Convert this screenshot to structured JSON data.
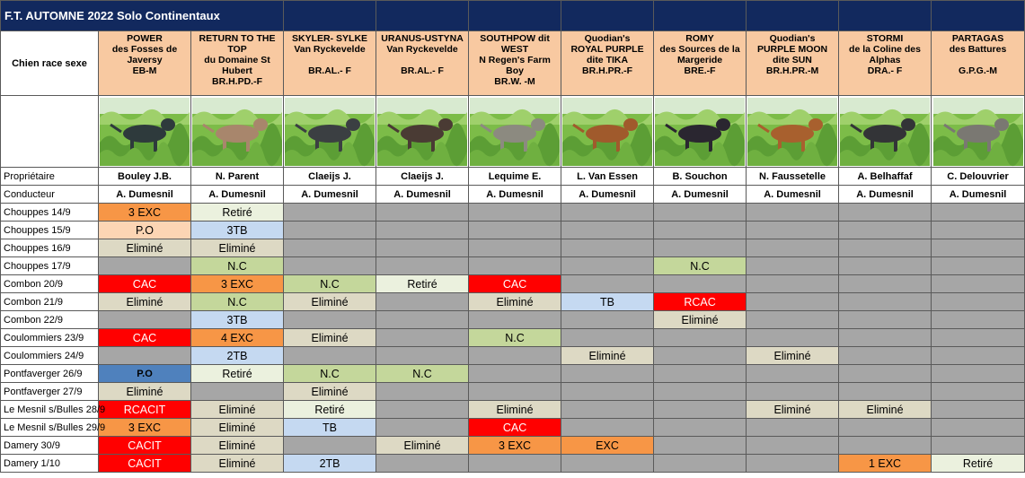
{
  "title": "F.T. AUTOMNE 2022 Solo Continentaux",
  "corner_label": "Chien race sexe",
  "owner_label": "Propriétaire",
  "handler_label": "Conducteur",
  "colors": {
    "navy": "#12295e",
    "header": "#f8c9a1",
    "empty": "#a6a6a6",
    "CAC": "#ff0000",
    "RCAC": "#ff0000",
    "RCACIT": "#ff0000",
    "CACIT": "#ff0000",
    "EXC": "#f79646",
    "TB": "#c5d9f1",
    "P.O": "#fcd5b4",
    "P.O_blue": "#4f81bd",
    "N.C": "#c4d79b",
    "Eliminé": "#ddd9c4",
    "Retiré": "#ebf1de"
  },
  "dogs": [
    {
      "lines": [
        "POWER",
        "des Fosses de",
        "Javersy",
        "EB-M"
      ],
      "owner": "Bouley J.B.",
      "handler": "A. Dumesnil",
      "photo": "mottled-black-white-pointer-in-field"
    },
    {
      "lines": [
        "RETURN TO THE",
        "TOP",
        "du Domaine St",
        "Hubert",
        "BR.H.PD.-F"
      ],
      "owner": "N. Parent",
      "handler": "A. Dumesnil",
      "photo": "wirehaired-tan-griffon-in-field"
    },
    {
      "lines": [
        "SKYLER- SYLKE",
        "Van Ryckevelde",
        "",
        "BR.AL.- F"
      ],
      "owner": "Claeijs J.",
      "handler": "A. Dumesnil",
      "photo": "black-white-pointer-in-field"
    },
    {
      "lines": [
        "URANUS-USTYNA",
        "Van Ryckevelde",
        "",
        "BR.AL.- F"
      ],
      "owner": "Claeijs J.",
      "handler": "A. Dumesnil",
      "photo": "brown-pointer-in-grass"
    },
    {
      "lines": [
        "SOUTHPOW dit",
        "WEST",
        "N Regen's Farm",
        "Boy",
        "BR.W. -M"
      ],
      "owner": "Lequime E.",
      "handler": "A. Dumesnil",
      "photo": "grey-weimaraner-in-field"
    },
    {
      "lines": [
        "Quodian's",
        "ROYAL PURPLE",
        "dite TIKA",
        "BR.H.PR.-F"
      ],
      "owner": "L. Van Essen",
      "handler": "A. Dumesnil",
      "photo": "red-vizsla-standing"
    },
    {
      "lines": [
        "ROMY",
        "des Sources de la",
        "Margeride",
        "BRE.-F"
      ],
      "owner": "B. Souchon",
      "handler": "A. Dumesnil",
      "photo": "black-white-tan-brittany"
    },
    {
      "lines": [
        "Quodian's",
        "PURPLE MOON",
        "dite SUN",
        "BR.H.PR.-M"
      ],
      "owner": "N. Faussetelle",
      "handler": "A. Dumesnil",
      "photo": "red-vizsla-in-field"
    },
    {
      "lines": [
        "STORMI",
        "de la Coline des",
        "Alphas",
        "DRA.- F"
      ],
      "owner": "A. Belhaffaf",
      "handler": "A. Dumesnil",
      "photo": "dark-drahthaar-in-field"
    },
    {
      "lines": [
        "PARTAGAS",
        "des Battures",
        "",
        "G.P.G.-M"
      ],
      "owner": "C. Delouvrier",
      "handler": "A. Dumesnil",
      "photo": "grey-griffon-in-field"
    }
  ],
  "trials": [
    {
      "label": "Chouppes 14/9",
      "results": [
        "3 EXC",
        "Retiré",
        "",
        "",
        "",
        "",
        "",
        "",
        "",
        ""
      ]
    },
    {
      "label": "Chouppes 15/9",
      "results": [
        "P.O",
        "3TB",
        "",
        "",
        "",
        "",
        "",
        "",
        "",
        ""
      ]
    },
    {
      "label": "Chouppes 16/9",
      "results": [
        "Eliminé",
        "Eliminé",
        "",
        "",
        "",
        "",
        "",
        "",
        "",
        ""
      ]
    },
    {
      "label": "Chouppes 17/9",
      "results": [
        "",
        "N.C",
        "",
        "",
        "",
        "",
        "N.C",
        "",
        "",
        ""
      ]
    },
    {
      "label": "Combon 20/9",
      "results": [
        "CAC",
        "3 EXC",
        "N.C",
        "Retiré",
        "CAC",
        "",
        "",
        "",
        "",
        ""
      ]
    },
    {
      "label": "Combon 21/9",
      "results": [
        "Eliminé",
        "N.C",
        "Eliminé",
        "",
        "Eliminé",
        "TB",
        "RCAC",
        "",
        "",
        ""
      ]
    },
    {
      "label": "Combon 22/9",
      "results": [
        "",
        "3TB",
        "",
        "",
        "",
        "",
        "Eliminé",
        "",
        "",
        ""
      ]
    },
    {
      "label": "Coulommiers 23/9",
      "results": [
        "CAC",
        "4 EXC",
        "Eliminé",
        "",
        "N.C",
        "",
        "",
        "",
        "",
        ""
      ]
    },
    {
      "label": "Coulommiers 24/9",
      "results": [
        "",
        "2TB",
        "",
        "",
        "",
        "Eliminé",
        "",
        "Eliminé",
        "",
        ""
      ]
    },
    {
      "label": "Pontfaverger 26/9",
      "results": [
        "P.O",
        "Retiré",
        "N.C",
        "N.C",
        "",
        "",
        "",
        "",
        "",
        ""
      ]
    },
    {
      "label": "Pontfaverger 27/9",
      "results": [
        "Eliminé",
        "",
        "Eliminé",
        "",
        "",
        "",
        "",
        "",
        "",
        ""
      ]
    },
    {
      "label": "Le Mesnil s/Bulles 28/9",
      "results": [
        "RCACIT",
        "Eliminé",
        "Retiré",
        "",
        "Eliminé",
        "",
        "",
        "Eliminé",
        "Eliminé",
        ""
      ]
    },
    {
      "label": "Le Mesnil s/Bulles 29/9",
      "results": [
        "3 EXC",
        "Eliminé",
        "TB",
        "",
        "CAC",
        "",
        "",
        "",
        "",
        ""
      ]
    },
    {
      "label": "Damery 30/9",
      "results": [
        "CACIT",
        "Eliminé",
        "",
        "Eliminé",
        "3 EXC",
        "EXC",
        "",
        "",
        "",
        ""
      ]
    },
    {
      "label": "Damery 1/10",
      "results": [
        "CACIT",
        "Eliminé",
        "2TB",
        "",
        "",
        "",
        "",
        "",
        "1 EXC",
        "Retiré"
      ]
    }
  ]
}
